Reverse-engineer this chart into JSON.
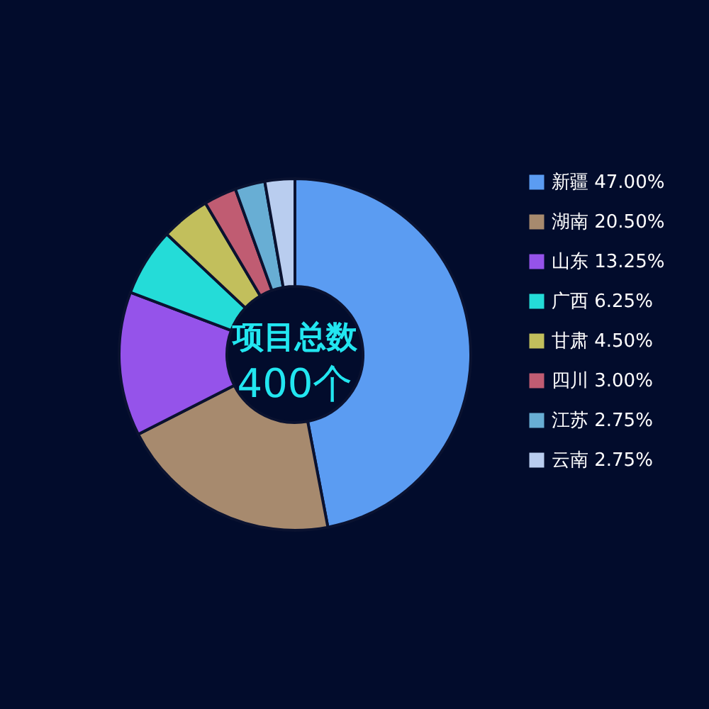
{
  "chart_data": {
    "type": "donut",
    "categories": [
      "新疆",
      "湖南",
      "山东",
      "广西",
      "甘肃",
      "四川",
      "江苏",
      "云南"
    ],
    "values": [
      47.0,
      20.5,
      13.25,
      6.25,
      4.5,
      3.0,
      2.75,
      2.75
    ],
    "value_labels": [
      "47.00%",
      "20.50%",
      "13.25%",
      "6.25%",
      "4.50%",
      "3.00%",
      "2.75%",
      "2.75%"
    ],
    "colors": [
      "#5b9cf2",
      "#a78a6e",
      "#9553ea",
      "#24dcd8",
      "#c2bf5c",
      "#c05c72",
      "#68aed4",
      "#b9cdef"
    ],
    "annotations": [
      "项目总数",
      "400个"
    ],
    "legend": "right"
  }
}
